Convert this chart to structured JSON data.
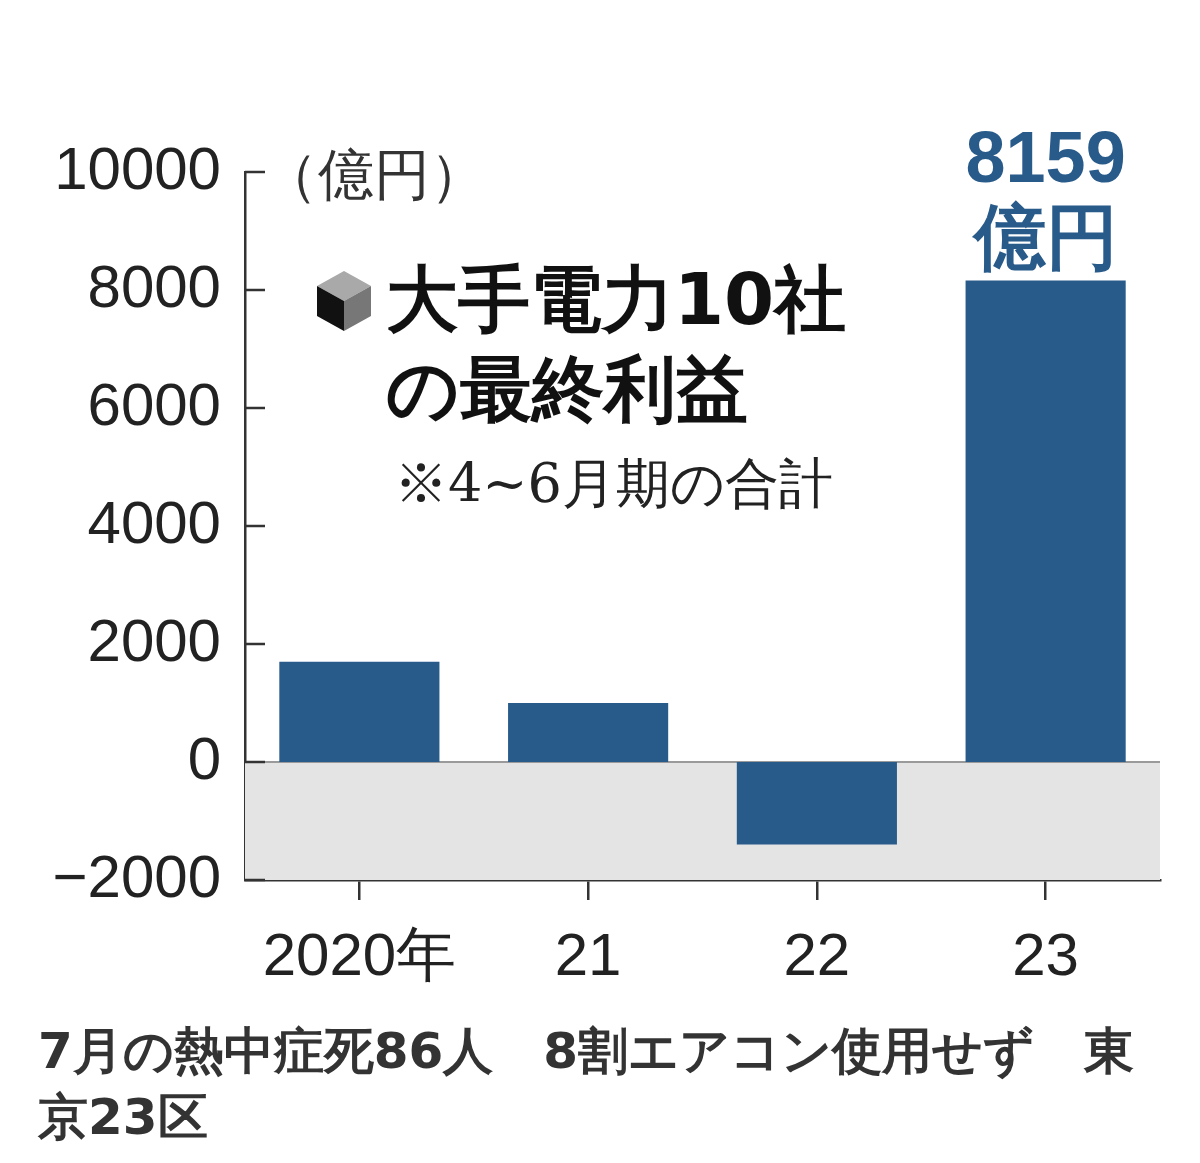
{
  "chart_data": {
    "type": "bar",
    "title": "大手電力10社の最終利益",
    "subtitle": "※4~6月期の合計",
    "ylabel": "（億円）",
    "categories": [
      "2020年",
      "21",
      "22",
      "23"
    ],
    "series": [
      {
        "color": "#285a8a",
        "values": [
          1700,
          1000,
          -1400,
          8159
        ],
        "value_labels": [
          null,
          null,
          null,
          "8159億円"
        ]
      }
    ],
    "ylim": [
      -2000,
      10000
    ],
    "yticks": [
      {
        "value": -2000,
        "label": "−2000"
      },
      0,
      2000,
      4000,
      6000,
      8000,
      10000
    ],
    "bands": [
      {
        "axis": "y",
        "from": -2000,
        "to": 0,
        "color": "#e4e4e4"
      }
    ],
    "annotations": [
      "7月の熱中症死86人　8割エアコン使用せず　東京23区"
    ]
  }
}
